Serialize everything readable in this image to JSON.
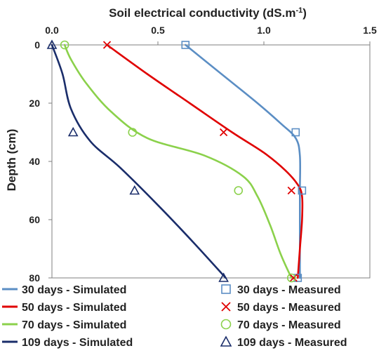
{
  "chart_data": {
    "type": "line",
    "title": "",
    "xlabel": "Soil electrical conductivity (dS.m-1)",
    "xlabel_main": "Soil electrical conductivity (dS.m",
    "xlabel_exp": "-1",
    "xlabel_close": ")",
    "ylabel": "Depth (cm)",
    "xlim": [
      0,
      1.5
    ],
    "ylim": [
      0,
      80
    ],
    "y_inverted": true,
    "x_axis_position": "top",
    "x_ticks": [
      "0.0",
      "0.5",
      "1.0",
      "1.5"
    ],
    "y_ticks": [
      "0",
      "20",
      "40",
      "60",
      "80"
    ],
    "grid": false,
    "legend_position": "bottom",
    "series": [
      {
        "name": "30 days - Simulated",
        "kind": "line",
        "color": "#5b8ec4",
        "x": [
          0.63,
          0.8,
          0.97,
          1.08,
          1.15,
          1.17,
          1.17,
          1.17,
          1.17,
          1.17
        ],
        "y": [
          0,
          10,
          20,
          27,
          32,
          38,
          50,
          60,
          70,
          80
        ]
      },
      {
        "name": "50 days - Simulated",
        "kind": "line",
        "color": "#e00000",
        "x": [
          0.26,
          0.45,
          0.65,
          0.85,
          1.0,
          1.1,
          1.16,
          1.18,
          1.18,
          1.17,
          1.16
        ],
        "y": [
          0,
          10,
          20,
          30,
          37,
          43,
          48,
          52,
          60,
          70,
          80
        ]
      },
      {
        "name": "70 days - Simulated",
        "kind": "line",
        "color": "#8bd14b",
        "x": [
          0.06,
          0.09,
          0.16,
          0.28,
          0.45,
          0.72,
          0.9,
          0.97,
          1.03,
          1.08,
          1.13
        ],
        "y": [
          0,
          5,
          13,
          23,
          32,
          38,
          45,
          52,
          62,
          72,
          80
        ]
      },
      {
        "name": "109 days - Simulated",
        "kind": "line",
        "color": "#1a2d6a",
        "x": [
          0.0,
          0.05,
          0.09,
          0.18,
          0.32,
          0.5,
          0.67,
          0.82
        ],
        "y": [
          0,
          10,
          22,
          33,
          42,
          55,
          68,
          80
        ]
      },
      {
        "name": "30 days - Measured",
        "kind": "marker",
        "marker": "square",
        "color": "#5b8ec4",
        "x": [
          0.63,
          1.15,
          1.18,
          1.16
        ],
        "y": [
          0,
          30,
          50,
          80
        ]
      },
      {
        "name": "50 days - Measured",
        "kind": "marker",
        "marker": "x",
        "color": "#e00000",
        "x": [
          0.26,
          0.81,
          1.13,
          1.14
        ],
        "y": [
          0,
          30,
          50,
          80
        ]
      },
      {
        "name": "70 days - Measured",
        "kind": "marker",
        "marker": "circle",
        "color": "#8bd14b",
        "x": [
          0.06,
          0.38,
          0.88,
          1.13
        ],
        "y": [
          0,
          30,
          50,
          80
        ]
      },
      {
        "name": "109 days - Measured",
        "kind": "marker",
        "marker": "triangle",
        "color": "#1a2d6a",
        "x": [
          0.0,
          0.1,
          0.39,
          0.81
        ],
        "y": [
          0,
          30,
          50,
          80
        ]
      }
    ]
  }
}
